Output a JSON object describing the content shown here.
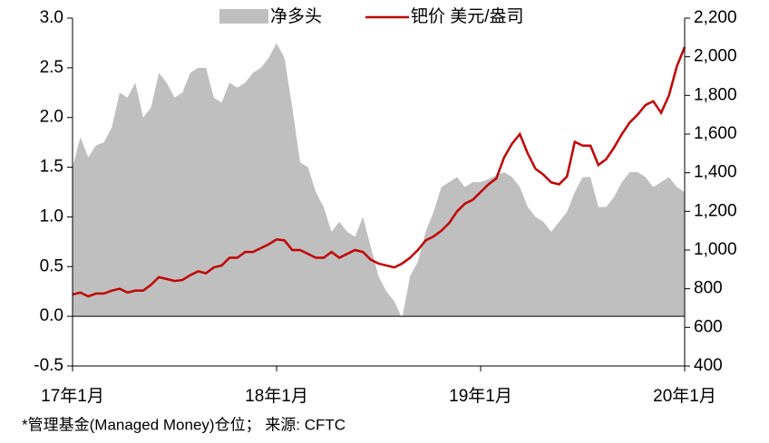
{
  "chart_data": {
    "type": "area-line",
    "categories": [
      "17年1月",
      null,
      null,
      null,
      null,
      null,
      null,
      null,
      null,
      null,
      null,
      null,
      null,
      null,
      null,
      null,
      null,
      null,
      null,
      null,
      null,
      null,
      null,
      null,
      null,
      null,
      "18年1月",
      null,
      null,
      null,
      null,
      null,
      null,
      null,
      null,
      null,
      null,
      null,
      null,
      null,
      null,
      null,
      null,
      null,
      null,
      null,
      null,
      null,
      null,
      null,
      null,
      null,
      "19年1月",
      null,
      null,
      null,
      null,
      null,
      null,
      null,
      null,
      null,
      null,
      null,
      null,
      null,
      null,
      null,
      null,
      null,
      null,
      null,
      null,
      null,
      null,
      null,
      null,
      null,
      "20年1月"
    ],
    "series": [
      {
        "name": "净多头",
        "color": "#bfbfbf",
        "kind": "area",
        "axis": "y",
        "values": [
          1.5,
          1.8,
          1.6,
          1.72,
          1.75,
          1.9,
          2.25,
          2.2,
          2.35,
          2.0,
          2.1,
          2.45,
          2.35,
          2.2,
          2.25,
          2.45,
          2.5,
          2.5,
          2.2,
          2.15,
          2.35,
          2.3,
          2.35,
          2.45,
          2.5,
          2.6,
          2.75,
          2.6,
          2.1,
          1.55,
          1.5,
          1.25,
          1.1,
          0.85,
          0.95,
          0.85,
          0.8,
          1.0,
          0.7,
          0.4,
          0.25,
          0.15,
          -0.02,
          0.4,
          0.55,
          0.85,
          1.05,
          1.3,
          1.35,
          1.4,
          1.3,
          1.35,
          1.35,
          1.38,
          1.42,
          1.45,
          1.4,
          1.3,
          1.1,
          1.0,
          0.95,
          0.85,
          0.95,
          1.05,
          1.25,
          1.4,
          1.4,
          1.1,
          1.1,
          1.2,
          1.35,
          1.45,
          1.45,
          1.4,
          1.3,
          1.35,
          1.4,
          1.3,
          1.25
        ]
      },
      {
        "name": "钯价 美元/盎司",
        "color": "#c00000",
        "kind": "line",
        "axis": "y2",
        "values": [
          770,
          780,
          760,
          775,
          775,
          790,
          800,
          780,
          790,
          790,
          820,
          860,
          850,
          840,
          845,
          870,
          890,
          880,
          910,
          920,
          960,
          960,
          990,
          990,
          1010,
          1030,
          1055,
          1050,
          1000,
          1000,
          980,
          960,
          960,
          990,
          960,
          980,
          1000,
          990,
          950,
          930,
          920,
          910,
          930,
          960,
          1000,
          1050,
          1070,
          1100,
          1140,
          1200,
          1240,
          1260,
          1300,
          1340,
          1370,
          1480,
          1550,
          1600,
          1500,
          1420,
          1390,
          1350,
          1340,
          1380,
          1560,
          1540,
          1540,
          1440,
          1470,
          1530,
          1600,
          1660,
          1700,
          1750,
          1770,
          1710,
          1800,
          1950,
          2050
        ]
      }
    ],
    "ylim": [
      -0.5,
      3
    ],
    "yticks": [
      -0.5,
      {
        "value": 0,
        "label": "0.0"
      },
      0.5,
      {
        "value": 1,
        "label": "1.0"
      },
      1.5,
      {
        "value": 2,
        "label": "2.0"
      },
      2.5,
      {
        "value": 3,
        "label": "3.0"
      }
    ],
    "y2lim": [
      400,
      2200
    ],
    "y2ticks": [
      400,
      600,
      800,
      {
        "value": 1000,
        "label": "1,000"
      },
      {
        "value": 1200,
        "label": "1,200"
      },
      {
        "value": 1400,
        "label": "1,400"
      },
      {
        "value": 1600,
        "label": "1,600"
      },
      {
        "value": 1800,
        "label": "1,800"
      },
      {
        "value": 2000,
        "label": "2,000"
      },
      {
        "value": 2200,
        "label": "2,200"
      }
    ],
    "note": "*管理基金(Managed Money)仓位；  来源: CFTC",
    "legend": "top"
  }
}
